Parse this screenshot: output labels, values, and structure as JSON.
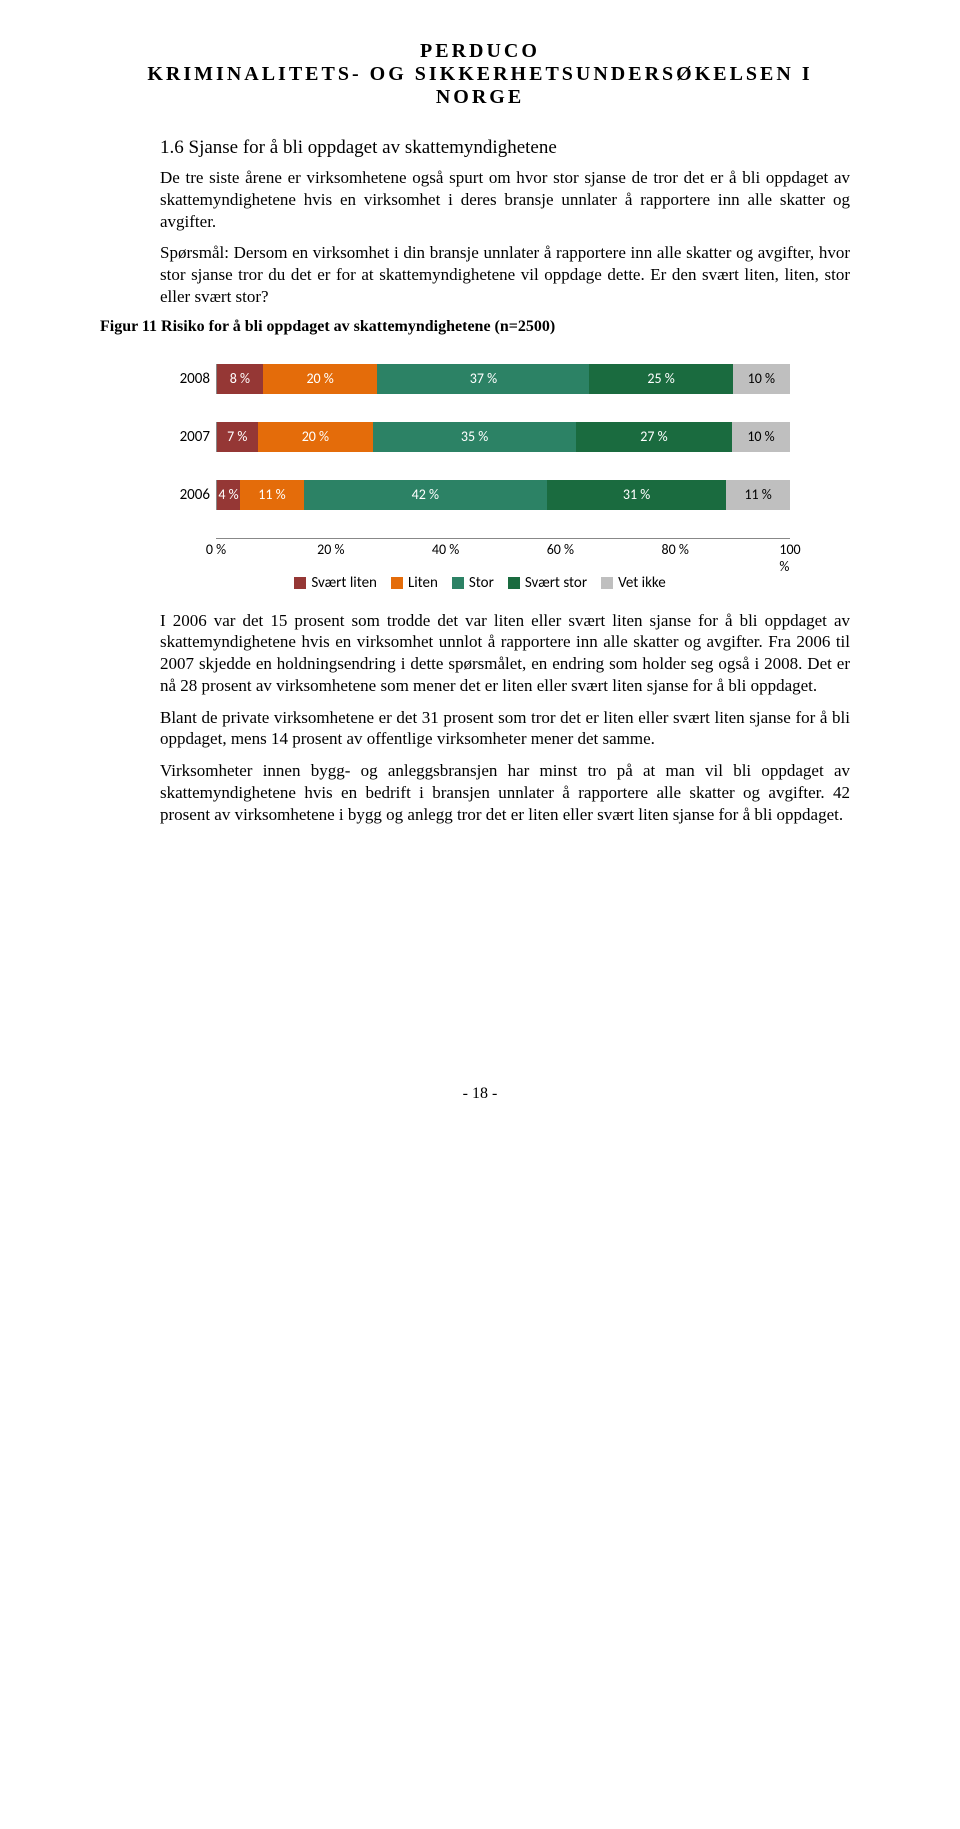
{
  "header": {
    "line1": "PERDUCO",
    "line2": "KRIMINALITETS- OG SIKKERHETSUNDERSØKELSEN I NORGE"
  },
  "section": {
    "title": "1.6 Sjanse for å bli oppdaget av skattemyndighetene",
    "intro": "De tre siste årene er virksomhetene også spurt om hvor stor sjanse de tror det er å bli oppdaget av skattemyndighetene hvis en virksomhet i deres bransje unnlater å rapportere inn alle skatter og avgifter.",
    "question": "Spørsmål: Dersom en virksomhet i din bransje unnlater å rapportere inn alle skatter og avgifter, hvor stor sjanse tror du det er for at skattemyndighetene vil oppdage dette. Er den svært liten, liten, stor eller svært stor?",
    "figure_title": "Figur 11 Risiko for å bli oppdaget av skattemyndighetene (n=2500)"
  },
  "chart": {
    "type": "stacked-bar-horizontal",
    "colors": {
      "svart_liten": "#953735",
      "liten": "#e46c0a",
      "stor": "#2c8265",
      "svart_stor": "#1a6b3f",
      "vet_ikke": "#bfbfbf",
      "grid": "#d8d8d8",
      "axis": "#888888",
      "bg": "#ffffff"
    },
    "rows": [
      {
        "year": "2008",
        "segments": [
          {
            "key": "svart_liten",
            "value": 8,
            "label": "8 %"
          },
          {
            "key": "liten",
            "value": 20,
            "label": "20 %"
          },
          {
            "key": "stor",
            "value": 37,
            "label": "37 %"
          },
          {
            "key": "svart_stor",
            "value": 25,
            "label": "25 %"
          },
          {
            "key": "vet_ikke",
            "value": 10,
            "label": "10 %"
          }
        ]
      },
      {
        "year": "2007",
        "segments": [
          {
            "key": "svart_liten",
            "value": 7,
            "label": "7 %"
          },
          {
            "key": "liten",
            "value": 20,
            "label": "20 %"
          },
          {
            "key": "stor",
            "value": 35,
            "label": "35 %"
          },
          {
            "key": "svart_stor",
            "value": 27,
            "label": "27 %"
          },
          {
            "key": "vet_ikke",
            "value": 10,
            "label": "10 %"
          }
        ]
      },
      {
        "year": "2006",
        "segments": [
          {
            "key": "svart_liten",
            "value": 4,
            "label": "4 %"
          },
          {
            "key": "liten",
            "value": 11,
            "label": "11 %"
          },
          {
            "key": "stor",
            "value": 42,
            "label": "42 %"
          },
          {
            "key": "svart_stor",
            "value": 31,
            "label": "31 %"
          },
          {
            "key": "vet_ikke",
            "value": 11,
            "label": "11 %"
          }
        ]
      }
    ],
    "xaxis": {
      "min": 0,
      "max": 100,
      "ticks": [
        {
          "pos": 0,
          "label": "0 %"
        },
        {
          "pos": 20,
          "label": "20 %"
        },
        {
          "pos": 40,
          "label": "40 %"
        },
        {
          "pos": 60,
          "label": "60 %"
        },
        {
          "pos": 80,
          "label": "80 %"
        },
        {
          "pos": 100,
          "label": "100 %"
        }
      ]
    },
    "legend": [
      {
        "key": "svart_liten",
        "label": "Svært liten"
      },
      {
        "key": "liten",
        "label": "Liten"
      },
      {
        "key": "stor",
        "label": "Stor"
      },
      {
        "key": "svart_stor",
        "label": "Svært stor"
      },
      {
        "key": "vet_ikke",
        "label": "Vet ikke"
      }
    ]
  },
  "body": {
    "p1": "I 2006 var det 15 prosent som trodde det var liten eller svært liten sjanse for å bli oppdaget av skattemyndighetene hvis en virksomhet unnlot å rapportere inn alle skatter og avgifter. Fra 2006 til 2007 skjedde en holdningsendring i dette spørsmålet, en endring som holder seg også i 2008. Det er nå 28 prosent av virksomhetene som mener det er liten eller svært liten sjanse for å bli oppdaget.",
    "p2": "Blant de private virksomhetene er det 31 prosent som tror det er liten eller svært liten sjanse for å bli oppdaget, mens 14 prosent av offentlige virksomheter mener det samme.",
    "p3": "Virksomheter innen bygg- og anleggsbransjen har minst tro på at man vil bli oppdaget av skattemyndighetene hvis en bedrift i bransjen unnlater å rapportere alle skatter og avgifter. 42 prosent av virksomhetene i bygg og anlegg tror det er liten eller svært liten sjanse for å bli oppdaget."
  },
  "footer": {
    "page": "- 18 -"
  }
}
